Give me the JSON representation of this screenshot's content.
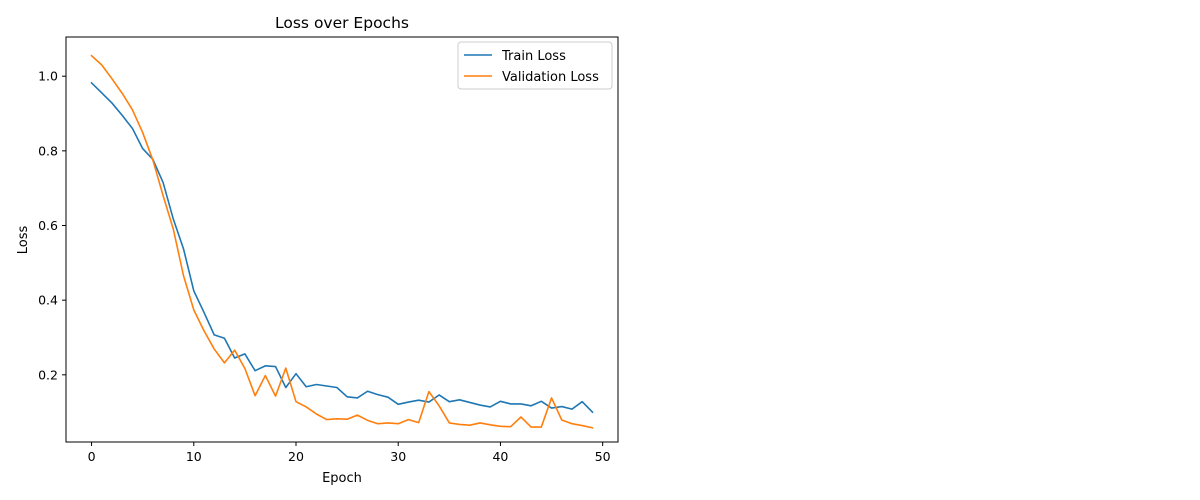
{
  "chart_data": {
    "type": "line",
    "title": "Loss over Epochs",
    "xlabel": "Epoch",
    "ylabel": "Loss",
    "xlim": [
      -2.5,
      51.5
    ],
    "ylim": [
      0.02,
      1.105
    ],
    "xticks": [
      0,
      10,
      20,
      30,
      40,
      50
    ],
    "yticks": [
      0.2,
      0.4,
      0.6,
      0.8,
      1.0
    ],
    "ytick_labels": [
      "0.2",
      "0.4",
      "0.6",
      "0.8",
      "1.0"
    ],
    "grid": false,
    "legend_position": "top-right",
    "x": [
      0,
      1,
      2,
      3,
      4,
      5,
      6,
      7,
      8,
      9,
      10,
      11,
      12,
      13,
      14,
      15,
      16,
      17,
      18,
      19,
      20,
      21,
      22,
      23,
      24,
      25,
      26,
      27,
      28,
      29,
      30,
      31,
      32,
      33,
      34,
      35,
      36,
      37,
      38,
      39,
      40,
      41,
      42,
      43,
      44,
      45,
      46,
      47,
      48,
      49
    ],
    "series": [
      {
        "name": "Train Loss",
        "color": "#1f77b4",
        "values": [
          0.982,
          0.955,
          0.928,
          0.895,
          0.86,
          0.806,
          0.777,
          0.715,
          0.617,
          0.537,
          0.425,
          0.367,
          0.307,
          0.298,
          0.245,
          0.256,
          0.211,
          0.224,
          0.222,
          0.166,
          0.203,
          0.168,
          0.174,
          0.17,
          0.166,
          0.141,
          0.138,
          0.156,
          0.147,
          0.14,
          0.121,
          0.127,
          0.132,
          0.127,
          0.146,
          0.128,
          0.133,
          0.126,
          0.119,
          0.114,
          0.129,
          0.122,
          0.122,
          0.117,
          0.129,
          0.111,
          0.115,
          0.108,
          0.128,
          0.1
        ]
      },
      {
        "name": "Validation Loss",
        "color": "#ff7f0e",
        "values": [
          1.055,
          1.03,
          0.993,
          0.954,
          0.91,
          0.849,
          0.775,
          0.68,
          0.59,
          0.465,
          0.374,
          0.318,
          0.269,
          0.232,
          0.266,
          0.217,
          0.144,
          0.198,
          0.143,
          0.218,
          0.128,
          0.114,
          0.095,
          0.08,
          0.082,
          0.081,
          0.092,
          0.078,
          0.069,
          0.071,
          0.069,
          0.08,
          0.072,
          0.155,
          0.117,
          0.071,
          0.067,
          0.065,
          0.071,
          0.066,
          0.062,
          0.061,
          0.087,
          0.06,
          0.06,
          0.138,
          0.079,
          0.069,
          0.064,
          0.058
        ]
      }
    ]
  }
}
